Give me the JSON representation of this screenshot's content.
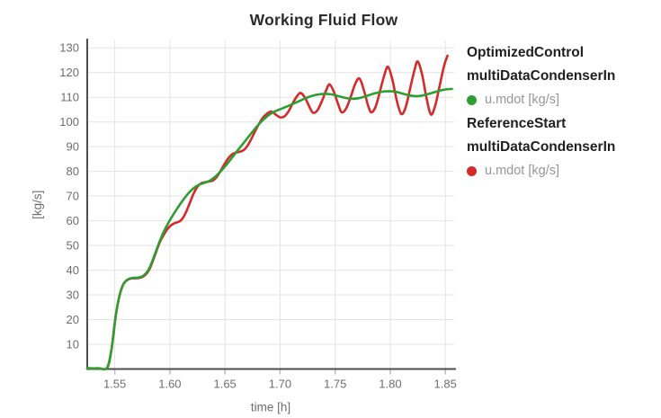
{
  "title": "Working Fluid Flow",
  "colors": {
    "green_series": "#2e9e33",
    "red_series": "#d42a2a",
    "grid": "#e3e3e3",
    "axis": "#4d4d4d",
    "tick_text": "#6e6e6e"
  },
  "legend": {
    "items": [
      {
        "header_line1": "OptimizedControl",
        "header_line2": "multiDataCondenserIn",
        "series_label": "u.mdot [kg/s]",
        "marker_color": "#2e9e33"
      },
      {
        "header_line1": "ReferenceStart",
        "header_line2": "multiDataCondenserIn",
        "series_label": "u.mdot [kg/s]",
        "marker_color": "#d42a2a"
      }
    ]
  },
  "chart_data": {
    "type": "line",
    "title": "Working Fluid Flow",
    "xlabel": "time [h]",
    "ylabel": "[kg/s]",
    "xlim": [
      1.525,
      1.858
    ],
    "ylim": [
      0,
      133
    ],
    "x_ticks": [
      1.55,
      1.6,
      1.65,
      1.7,
      1.75,
      1.8,
      1.85
    ],
    "y_ticks": [
      10,
      20,
      30,
      40,
      50,
      60,
      70,
      80,
      90,
      100,
      110,
      120,
      130
    ],
    "grid": true,
    "legend_position": "right",
    "series": [
      {
        "name": "ReferenceStart multiDataCondenserIn u.mdot [kg/s]",
        "color": "#d42a2a",
        "points": [
          [
            1.525,
            0.3
          ],
          [
            1.535,
            0.3
          ],
          [
            1.543,
            0.5
          ],
          [
            1.547,
            8
          ],
          [
            1.551,
            22
          ],
          [
            1.5545,
            30
          ],
          [
            1.558,
            34.5
          ],
          [
            1.562,
            36.2
          ],
          [
            1.566,
            36.7
          ],
          [
            1.571,
            36.8
          ],
          [
            1.576,
            37.5
          ],
          [
            1.581,
            40
          ],
          [
            1.586,
            45.5
          ],
          [
            1.591,
            51.5
          ],
          [
            1.596,
            55.5
          ],
          [
            1.6,
            57.8
          ],
          [
            1.604,
            59
          ],
          [
            1.609,
            59.8
          ],
          [
            1.613,
            62
          ],
          [
            1.617,
            66
          ],
          [
            1.621,
            70.5
          ],
          [
            1.625,
            73.8
          ],
          [
            1.629,
            75.3
          ],
          [
            1.634,
            75.8
          ],
          [
            1.639,
            76.3
          ],
          [
            1.643,
            78
          ],
          [
            1.647,
            81
          ],
          [
            1.651,
            84
          ],
          [
            1.655,
            86.3
          ],
          [
            1.659,
            87.5
          ],
          [
            1.664,
            88
          ],
          [
            1.668,
            89
          ],
          [
            1.672,
            91.5
          ],
          [
            1.676,
            95
          ],
          [
            1.68,
            98.5
          ],
          [
            1.684,
            101.5
          ],
          [
            1.688,
            103.3
          ],
          [
            1.692,
            104.2
          ],
          [
            1.696,
            103
          ],
          [
            1.7,
            101.9
          ],
          [
            1.704,
            102.3
          ],
          [
            1.708,
            104.5
          ],
          [
            1.712,
            108
          ],
          [
            1.716,
            110.8
          ],
          [
            1.719,
            111.7
          ],
          [
            1.723,
            109.5
          ],
          [
            1.727,
            105.8
          ],
          [
            1.73,
            103.7
          ],
          [
            1.734,
            104.8
          ],
          [
            1.738,
            108.5
          ],
          [
            1.742,
            113
          ],
          [
            1.745,
            115.2
          ],
          [
            1.749,
            112
          ],
          [
            1.753,
            106.8
          ],
          [
            1.756,
            103.9
          ],
          [
            1.76,
            105.5
          ],
          [
            1.764,
            110
          ],
          [
            1.768,
            115.2
          ],
          [
            1.772,
            117.6
          ],
          [
            1.776,
            113
          ],
          [
            1.78,
            106.5
          ],
          [
            1.783,
            103.9
          ],
          [
            1.787,
            106.5
          ],
          [
            1.791,
            113
          ],
          [
            1.795,
            119.5
          ],
          [
            1.798,
            122.3
          ],
          [
            1.802,
            117
          ],
          [
            1.806,
            108.5
          ],
          [
            1.81,
            103.2
          ],
          [
            1.814,
            106
          ],
          [
            1.818,
            113.5
          ],
          [
            1.822,
            121
          ],
          [
            1.825,
            124.5
          ],
          [
            1.829,
            119
          ],
          [
            1.833,
            109.5
          ],
          [
            1.837,
            103
          ],
          [
            1.841,
            107
          ],
          [
            1.845,
            115
          ],
          [
            1.849,
            123
          ],
          [
            1.852,
            126.8
          ]
        ]
      },
      {
        "name": "OptimizedControl multiDataCondenserIn u.mdot [kg/s]",
        "color": "#2e9e33",
        "points": [
          [
            1.525,
            0.3
          ],
          [
            1.535,
            0.3
          ],
          [
            1.543,
            0.5
          ],
          [
            1.547,
            8
          ],
          [
            1.551,
            22
          ],
          [
            1.5545,
            30
          ],
          [
            1.558,
            34.5
          ],
          [
            1.562,
            36.3
          ],
          [
            1.566,
            36.9
          ],
          [
            1.571,
            37
          ],
          [
            1.576,
            37.8
          ],
          [
            1.581,
            40.5
          ],
          [
            1.586,
            46
          ],
          [
            1.591,
            52
          ],
          [
            1.596,
            57
          ],
          [
            1.601,
            61
          ],
          [
            1.606,
            64.5
          ],
          [
            1.611,
            67.8
          ],
          [
            1.616,
            70.7
          ],
          [
            1.621,
            73
          ],
          [
            1.626,
            74.5
          ],
          [
            1.631,
            75.3
          ],
          [
            1.636,
            76.2
          ],
          [
            1.641,
            77.8
          ],
          [
            1.646,
            80
          ],
          [
            1.651,
            82.5
          ],
          [
            1.656,
            85.3
          ],
          [
            1.661,
            88.2
          ],
          [
            1.666,
            91
          ],
          [
            1.671,
            93.8
          ],
          [
            1.676,
            96.6
          ],
          [
            1.681,
            99.2
          ],
          [
            1.686,
            101.4
          ],
          [
            1.691,
            103.2
          ],
          [
            1.696,
            104.4
          ],
          [
            1.701,
            105.3
          ],
          [
            1.706,
            106.2
          ],
          [
            1.711,
            107.2
          ],
          [
            1.716,
            108.2
          ],
          [
            1.721,
            109.2
          ],
          [
            1.726,
            110.1
          ],
          [
            1.731,
            110.8
          ],
          [
            1.736,
            111.2
          ],
          [
            1.741,
            111.4
          ],
          [
            1.746,
            111.2
          ],
          [
            1.751,
            110.7
          ],
          [
            1.756,
            110.1
          ],
          [
            1.761,
            109.6
          ],
          [
            1.766,
            109.4
          ],
          [
            1.771,
            109.6
          ],
          [
            1.776,
            110.2
          ],
          [
            1.781,
            110.9
          ],
          [
            1.786,
            111.6
          ],
          [
            1.791,
            112.1
          ],
          [
            1.796,
            112.4
          ],
          [
            1.801,
            112.4
          ],
          [
            1.806,
            112.1
          ],
          [
            1.811,
            111.5
          ],
          [
            1.816,
            110.9
          ],
          [
            1.821,
            110.5
          ],
          [
            1.826,
            110.5
          ],
          [
            1.831,
            110.9
          ],
          [
            1.836,
            111.5
          ],
          [
            1.841,
            112.2
          ],
          [
            1.846,
            112.8
          ],
          [
            1.851,
            113.2
          ],
          [
            1.856,
            113.4
          ]
        ]
      }
    ]
  }
}
